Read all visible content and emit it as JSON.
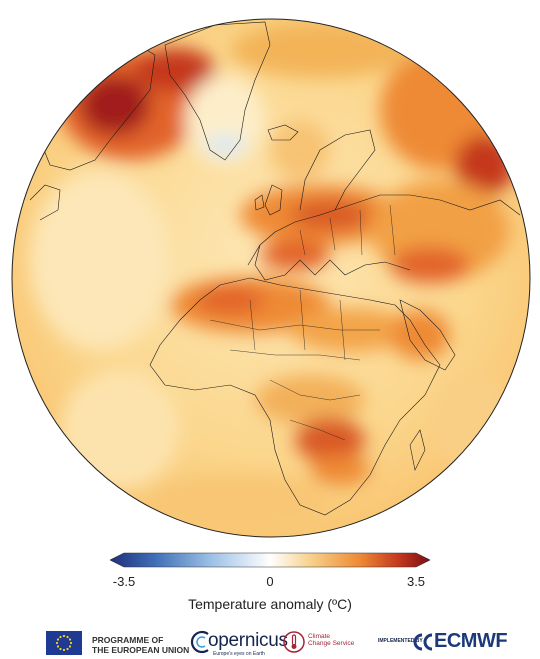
{
  "map": {
    "projection": "orthographic",
    "region": "Europe, Africa, North Atlantic and Greenland",
    "variable": "surface air temperature anomaly",
    "colors": {
      "cold_extreme": "#2b3f8f",
      "cold": "#7fa4d4",
      "neutral": "#ffffff",
      "mild_warm": "#fbe2a6",
      "warm": "#f5a640",
      "hot": "#e2642a",
      "hot_extreme": "#a11c1c"
    }
  },
  "colorbar": {
    "min_label": "-3.5",
    "mid_label": "0",
    "max_label": "3.5",
    "label": "Temperature anomaly (ºC)",
    "colors": [
      "#1f2f7a",
      "#3f6fb7",
      "#9fc2e6",
      "#ffffff",
      "#f7d08a",
      "#ee8a35",
      "#c5391f",
      "#7d0d12"
    ]
  },
  "footer": {
    "eu_line1": "PROGRAMME OF",
    "eu_line2": "THE EUROPEAN UNION",
    "copernicus": "opernicus",
    "copernicus_sub": "Europe's eyes on Earth",
    "c3s_line1": "Climate",
    "c3s_line2": "Change Service",
    "implemented_by": "IMPLEMENTED BY",
    "ecmwf": "ECMWF",
    "eu_flag_icon": "eu-flag-icon",
    "copernicus_icon": "copernicus-logo-icon",
    "c3s_icon": "c3s-logo-icon",
    "ecmwf_icon": "ecmwf-logo-icon"
  }
}
